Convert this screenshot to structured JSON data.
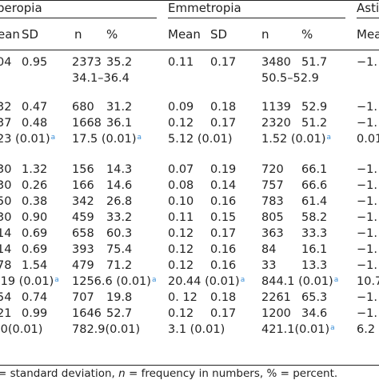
{
  "groups": {
    "hyperopia": "peropia",
    "emmetropia": "Emmetropia",
    "astigmatism": "Asti"
  },
  "columns": {
    "h_mean": "ean",
    "h_sd": "SD",
    "h_n": "n",
    "h_pct": "%",
    "e_mean": "Mean",
    "e_sd": "SD",
    "e_n": "n",
    "e_pct": "%",
    "a_mean": "Mean"
  },
  "rows": [
    [
      "04",
      "0.95",
      "2373",
      "35.2",
      "0.11",
      "0.17",
      "3480",
      "51.7",
      "−1."
    ],
    [
      "",
      "",
      "34.1–36.4",
      "",
      "",
      "",
      "50.5–52.9",
      "",
      ""
    ],
    [
      "32",
      "0.47",
      "680",
      "31.2",
      "0.09",
      "0.18",
      "1139",
      "52.9",
      "−1."
    ],
    [
      "37",
      "0.48",
      "1668",
      "36.1",
      "0.12",
      "0.17",
      "2320",
      "51.2",
      "−1."
    ],
    [
      "23 (0.01)",
      "",
      "17.5 (0.01)",
      "",
      "5.12 (0.01)",
      "",
      "1.52 (0.01)",
      "",
      "0.01"
    ],
    [
      "30",
      "1.32",
      "156",
      "14.3",
      "0.07",
      "0.19",
      "720",
      "66.1",
      "−1."
    ],
    [
      "30",
      "0.26",
      "166",
      "14.6",
      "0.08",
      "0.14",
      "757",
      "66.6",
      "−1."
    ],
    [
      "50",
      "0.38",
      "342",
      "26.8",
      "0.10",
      "0.16",
      "783",
      "61.4",
      "−1."
    ],
    [
      "30",
      "0.90",
      "459",
      "33.2",
      "0.11",
      "0.15",
      "805",
      "58.2",
      "−1."
    ],
    [
      "14",
      "0.69",
      "658",
      "60.3",
      "0.12",
      "0.17",
      "363",
      "33.3",
      "−1."
    ],
    [
      "14",
      "0.69",
      "393",
      "75.4",
      "0.12",
      "0.16",
      "84",
      "16.1",
      "−1."
    ],
    [
      "78",
      "1.54",
      "479",
      "71.2",
      "0.12",
      "0.16",
      "33",
      "13.3",
      "−1."
    ],
    [
      ".19 (0.01)",
      "",
      "1256.6 (0.01)",
      "",
      "20.44 (0.01)",
      "",
      "844.1 (0.01)",
      "",
      "10.7"
    ],
    [
      "54",
      "0.74",
      "707",
      "19.8",
      "0. 12",
      "0.18",
      "2261",
      "65.3",
      "−1."
    ],
    [
      "21",
      "0.99",
      "1646",
      "52.7",
      "0.12",
      "0.17",
      "1200",
      "34.6",
      "−1."
    ],
    [
      ".0(0.01)",
      "",
      "782.9(0.01)",
      "",
      "3.1 (0.01)",
      "",
      "421.1(0.01)",
      "",
      "6.2"
    ]
  ],
  "superscripts": [
    [
      false,
      false,
      false,
      false,
      false,
      false,
      false,
      false,
      false
    ],
    [
      false,
      false,
      false,
      false,
      false,
      false,
      false,
      false,
      false
    ],
    [
      false,
      false,
      false,
      false,
      false,
      false,
      false,
      false,
      false
    ],
    [
      false,
      false,
      false,
      false,
      false,
      false,
      false,
      false,
      false
    ],
    [
      true,
      false,
      true,
      false,
      false,
      false,
      true,
      false,
      false
    ],
    [
      false,
      false,
      false,
      false,
      false,
      false,
      false,
      false,
      false
    ],
    [
      false,
      false,
      false,
      false,
      false,
      false,
      false,
      false,
      false
    ],
    [
      false,
      false,
      false,
      false,
      false,
      false,
      false,
      false,
      false
    ],
    [
      false,
      false,
      false,
      false,
      false,
      false,
      false,
      false,
      false
    ],
    [
      false,
      false,
      false,
      false,
      false,
      false,
      false,
      false,
      false
    ],
    [
      false,
      false,
      false,
      false,
      false,
      false,
      false,
      false,
      false
    ],
    [
      false,
      false,
      false,
      false,
      false,
      false,
      false,
      false,
      false
    ],
    [
      true,
      false,
      true,
      false,
      true,
      false,
      true,
      false,
      false
    ],
    [
      false,
      false,
      false,
      false,
      false,
      false,
      false,
      false,
      false
    ],
    [
      false,
      false,
      false,
      false,
      false,
      false,
      false,
      false,
      false
    ],
    [
      false,
      false,
      false,
      false,
      false,
      false,
      true,
      false,
      false
    ]
  ],
  "superscript_mark": "a",
  "footnote": {
    "prefix": "= standard deviation, ",
    "n_symbol": "n",
    "middle": " = frequency in numbers, % = percent."
  },
  "colors": {
    "text": "#222222",
    "superscript": "#3a8fd8",
    "rule": "#222222"
  }
}
